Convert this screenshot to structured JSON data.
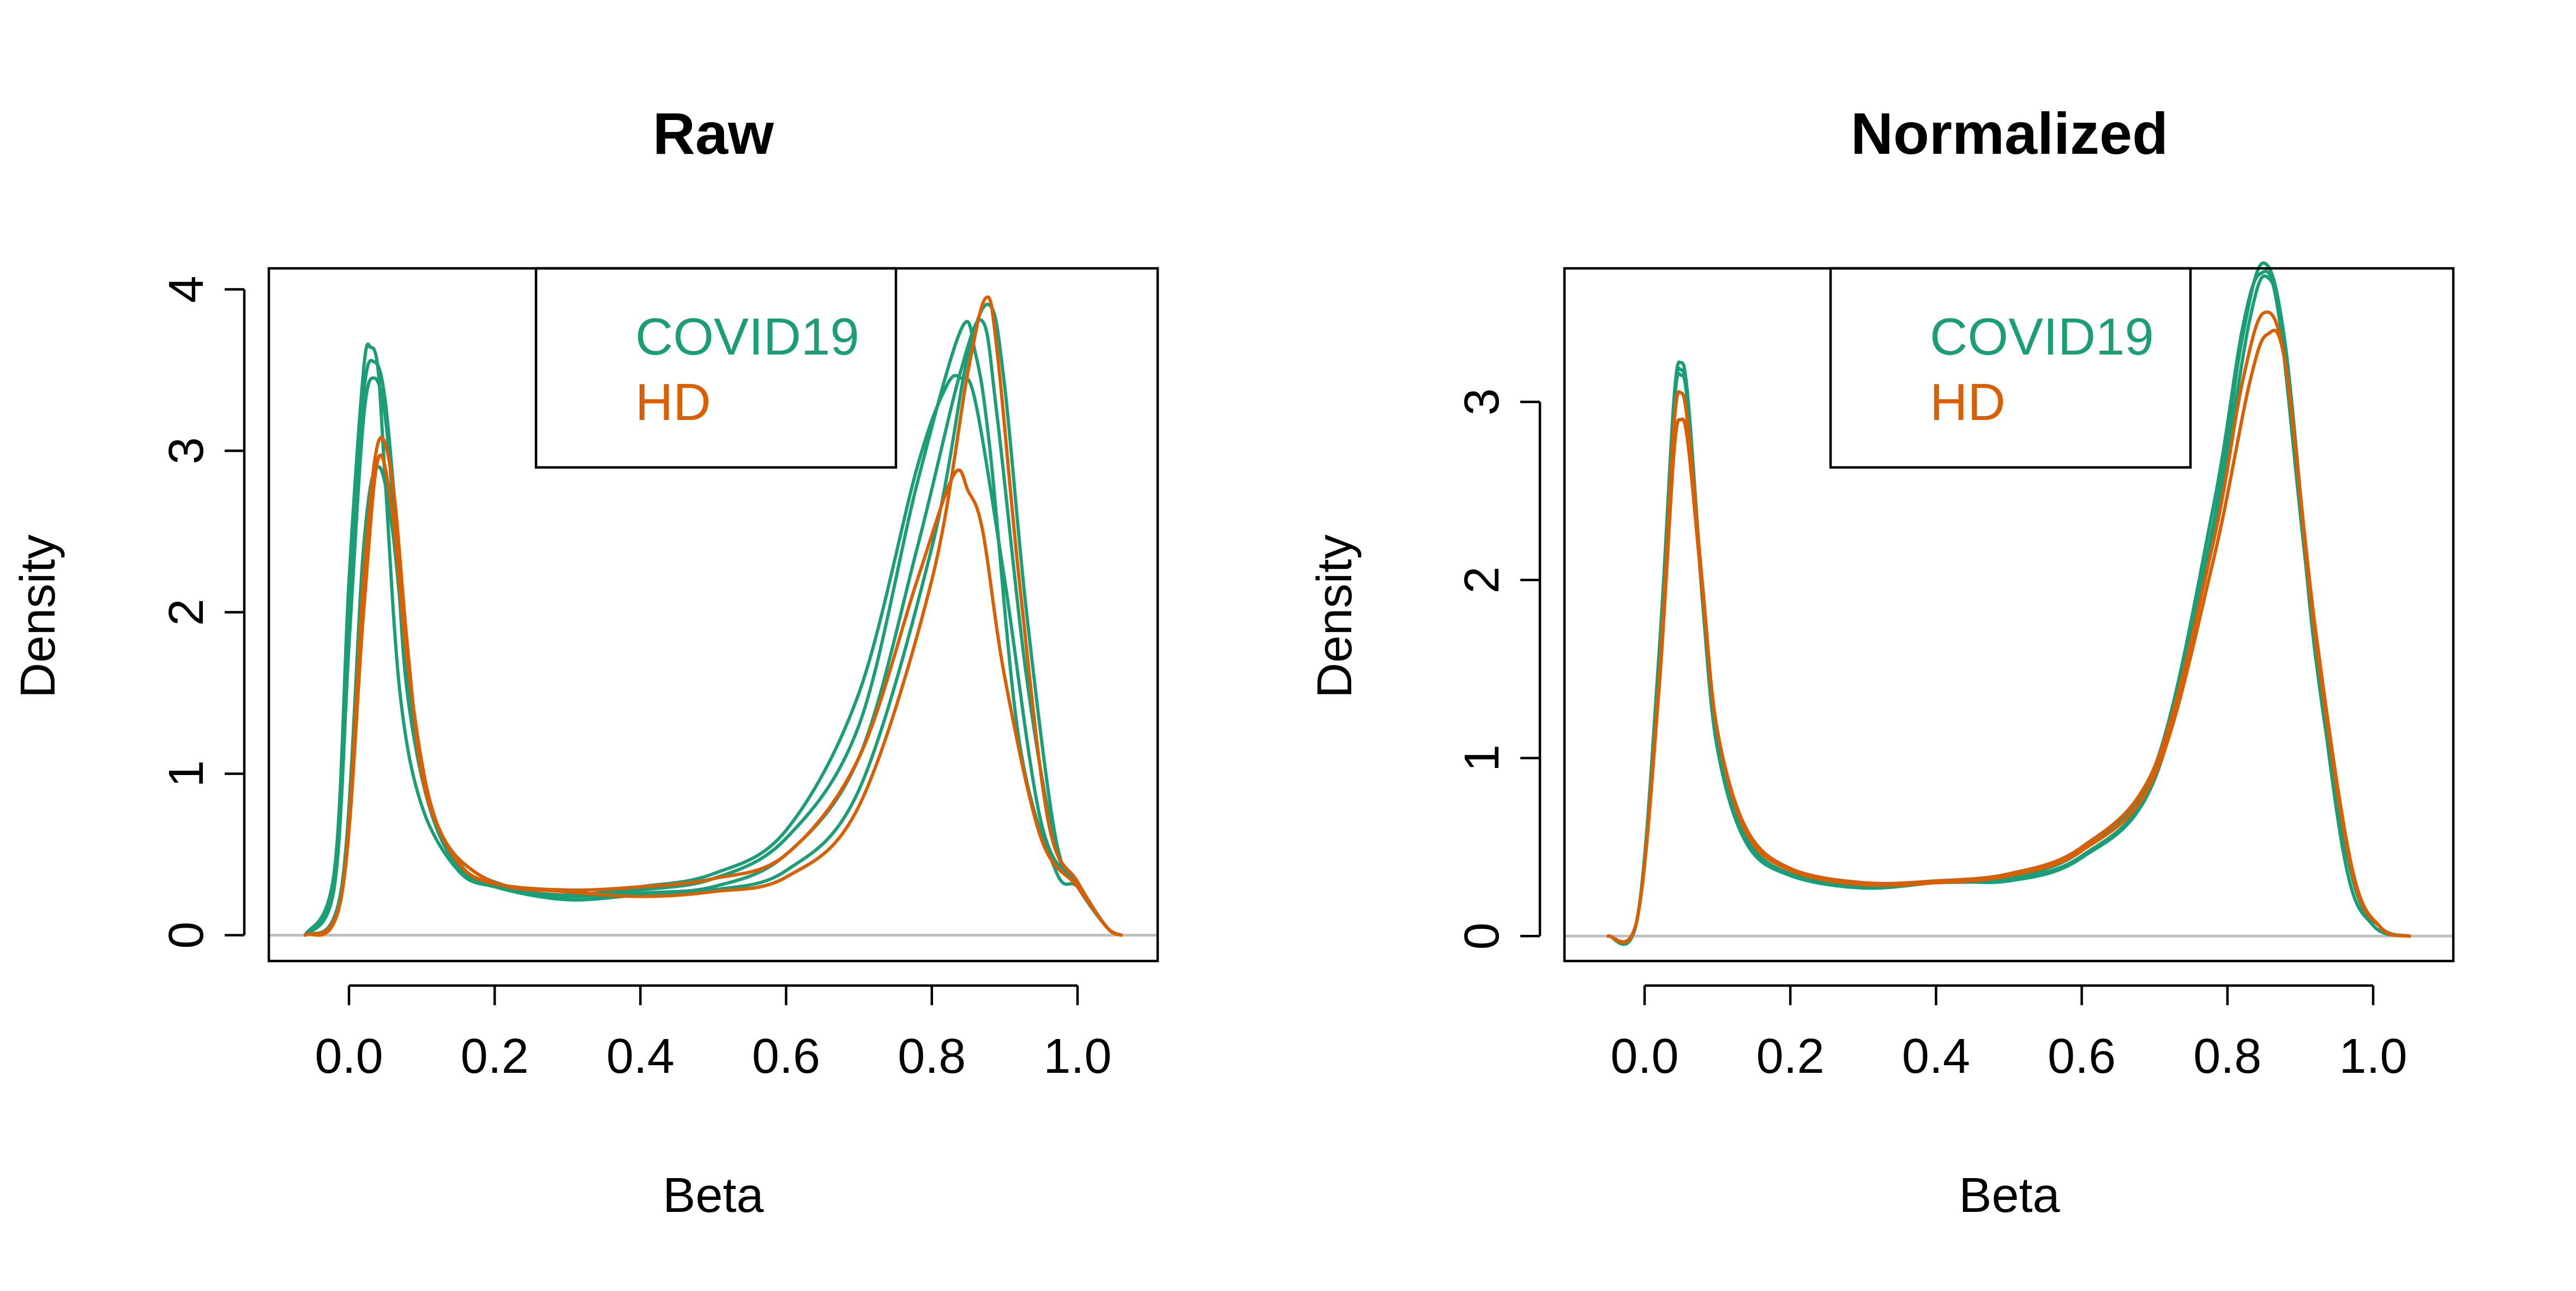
{
  "colors": {
    "COVID19": "#1b9e77",
    "HD": "#d95f02",
    "zero_line": "#bebebe"
  },
  "legend": {
    "items": [
      {
        "label": "COVID19",
        "color": "#1b9e77"
      },
      {
        "label": "HD",
        "color": "#d95f02"
      }
    ],
    "placement": "top-center"
  },
  "chart_data": [
    {
      "type": "line",
      "title": "Raw",
      "xlabel": "Beta",
      "ylabel": "Density",
      "xlim": [
        -0.11,
        1.11
      ],
      "ylim": [
        -0.16,
        4.13
      ],
      "x_ticks": [
        0.0,
        0.2,
        0.4,
        0.6,
        0.8,
        1.0
      ],
      "x_tick_labels": [
        "0.0",
        "0.2",
        "0.4",
        "0.6",
        "0.8",
        "1.0"
      ],
      "y_ticks": [
        0,
        1,
        2,
        3,
        4
      ],
      "y_tick_labels": [
        "0",
        "1",
        "2",
        "3",
        "4"
      ],
      "grid": false,
      "legend": "top-center",
      "series": [
        {
          "group": "COVID19",
          "x": [
            -0.06,
            -0.02,
            0.0,
            0.02,
            0.03,
            0.04,
            0.05,
            0.07,
            0.1,
            0.15,
            0.2,
            0.3,
            0.4,
            0.5,
            0.6,
            0.7,
            0.78,
            0.84,
            0.86,
            0.88,
            0.92,
            0.97,
            1.0,
            1.04,
            1.06
          ],
          "y": [
            0.0,
            0.4,
            2.2,
            3.5,
            3.64,
            3.5,
            2.8,
            1.5,
            0.8,
            0.4,
            0.3,
            0.24,
            0.28,
            0.35,
            0.6,
            1.3,
            2.8,
            3.75,
            3.6,
            3.0,
            1.2,
            0.4,
            0.3,
            0.05,
            0.0
          ]
        },
        {
          "group": "COVID19",
          "x": [
            -0.06,
            -0.02,
            0.0,
            0.02,
            0.035,
            0.05,
            0.065,
            0.08,
            0.11,
            0.15,
            0.2,
            0.3,
            0.4,
            0.5,
            0.6,
            0.7,
            0.78,
            0.84,
            0.87,
            0.89,
            0.93,
            0.97,
            1.0,
            1.04,
            1.06
          ],
          "y": [
            0.0,
            0.3,
            1.8,
            3.2,
            3.45,
            3.2,
            2.4,
            1.5,
            0.8,
            0.42,
            0.3,
            0.22,
            0.26,
            0.3,
            0.5,
            1.1,
            2.4,
            3.5,
            3.8,
            3.2,
            1.6,
            0.55,
            0.32,
            0.05,
            0.0
          ]
        },
        {
          "group": "COVID19",
          "x": [
            -0.06,
            -0.01,
            0.02,
            0.04,
            0.06,
            0.08,
            0.1,
            0.13,
            0.17,
            0.22,
            0.3,
            0.4,
            0.5,
            0.6,
            0.7,
            0.8,
            0.85,
            0.88,
            0.9,
            0.93,
            0.97,
            1.0,
            1.04,
            1.06
          ],
          "y": [
            0.0,
            0.3,
            2.4,
            2.9,
            2.5,
            1.6,
            1.0,
            0.6,
            0.4,
            0.3,
            0.22,
            0.25,
            0.28,
            0.4,
            0.9,
            2.4,
            3.6,
            3.9,
            3.4,
            2.0,
            0.6,
            0.33,
            0.05,
            0.0
          ]
        },
        {
          "group": "COVID19",
          "x": [
            -0.06,
            -0.02,
            0.0,
            0.02,
            0.035,
            0.05,
            0.07,
            0.09,
            0.12,
            0.16,
            0.2,
            0.3,
            0.4,
            0.5,
            0.6,
            0.7,
            0.78,
            0.82,
            0.84,
            0.86,
            0.9,
            0.95,
            1.0,
            1.04,
            1.06
          ],
          "y": [
            0.0,
            0.35,
            2.0,
            3.35,
            3.55,
            3.3,
            2.3,
            1.3,
            0.7,
            0.4,
            0.3,
            0.25,
            0.3,
            0.38,
            0.65,
            1.5,
            2.9,
            3.4,
            3.45,
            3.3,
            2.2,
            0.7,
            0.3,
            0.05,
            0.0
          ]
        },
        {
          "group": "HD",
          "x": [
            -0.06,
            -0.01,
            0.02,
            0.04,
            0.06,
            0.08,
            0.1,
            0.13,
            0.17,
            0.22,
            0.3,
            0.4,
            0.5,
            0.6,
            0.7,
            0.8,
            0.85,
            0.875,
            0.89,
            0.92,
            0.96,
            1.0,
            1.04,
            1.06
          ],
          "y": [
            0.0,
            0.25,
            2.2,
            3.05,
            2.8,
            1.8,
            1.0,
            0.6,
            0.4,
            0.3,
            0.27,
            0.24,
            0.27,
            0.36,
            0.8,
            2.2,
            3.5,
            3.95,
            3.6,
            2.2,
            0.7,
            0.33,
            0.05,
            0.0
          ]
        },
        {
          "group": "HD",
          "x": [
            -0.06,
            -0.01,
            0.02,
            0.04,
            0.06,
            0.08,
            0.11,
            0.15,
            0.2,
            0.3,
            0.4,
            0.5,
            0.6,
            0.7,
            0.78,
            0.83,
            0.85,
            0.87,
            0.9,
            0.95,
            1.0,
            1.04,
            1.06
          ],
          "y": [
            0.0,
            0.25,
            2.0,
            2.95,
            2.6,
            1.7,
            0.85,
            0.45,
            0.32,
            0.28,
            0.3,
            0.35,
            0.5,
            1.1,
            2.2,
            2.85,
            2.75,
            2.5,
            1.6,
            0.6,
            0.3,
            0.05,
            0.0
          ]
        }
      ]
    },
    {
      "type": "line",
      "title": "Normalized",
      "xlabel": "Beta",
      "ylabel": "Density",
      "xlim": [
        -0.11,
        1.11
      ],
      "ylim": [
        -0.14,
        3.75
      ],
      "x_ticks": [
        0.0,
        0.2,
        0.4,
        0.6,
        0.8,
        1.0
      ],
      "x_tick_labels": [
        "0.0",
        "0.2",
        "0.4",
        "0.6",
        "0.8",
        "1.0"
      ],
      "y_ticks": [
        0,
        1,
        2,
        3
      ],
      "y_tick_labels": [
        "0",
        "1",
        "2",
        "3"
      ],
      "grid": false,
      "legend": "top-center",
      "series": [
        {
          "group": "COVID19",
          "x": [
            -0.05,
            -0.01,
            0.02,
            0.04,
            0.05,
            0.06,
            0.08,
            0.1,
            0.14,
            0.2,
            0.3,
            0.4,
            0.5,
            0.6,
            0.7,
            0.78,
            0.82,
            0.85,
            0.88,
            0.92,
            0.97,
            1.01,
            1.05
          ],
          "y": [
            0.0,
            0.1,
            1.6,
            3.0,
            3.22,
            3.0,
            1.9,
            1.1,
            0.55,
            0.35,
            0.28,
            0.3,
            0.32,
            0.45,
            0.9,
            2.3,
            3.35,
            3.78,
            3.3,
            1.6,
            0.35,
            0.05,
            0.0
          ]
        },
        {
          "group": "COVID19",
          "x": [
            -0.05,
            -0.01,
            0.02,
            0.04,
            0.05,
            0.06,
            0.08,
            0.1,
            0.14,
            0.2,
            0.3,
            0.4,
            0.5,
            0.6,
            0.7,
            0.78,
            0.82,
            0.845,
            0.87,
            0.91,
            0.96,
            1.0,
            1.05
          ],
          "y": [
            0.0,
            0.1,
            1.5,
            2.95,
            3.15,
            2.95,
            1.85,
            1.05,
            0.52,
            0.34,
            0.27,
            0.3,
            0.33,
            0.48,
            0.95,
            2.4,
            3.4,
            3.72,
            3.5,
            2.0,
            0.45,
            0.06,
            0.0
          ]
        },
        {
          "group": "COVID19",
          "x": [
            -0.05,
            -0.01,
            0.02,
            0.04,
            0.05,
            0.06,
            0.08,
            0.1,
            0.14,
            0.2,
            0.3,
            0.4,
            0.5,
            0.6,
            0.7,
            0.78,
            0.83,
            0.855,
            0.88,
            0.92,
            0.97,
            1.01,
            1.05
          ],
          "y": [
            0.0,
            0.1,
            1.55,
            2.98,
            3.18,
            2.97,
            1.88,
            1.08,
            0.54,
            0.35,
            0.28,
            0.31,
            0.31,
            0.44,
            0.88,
            2.25,
            3.45,
            3.7,
            3.3,
            1.7,
            0.38,
            0.05,
            0.0
          ]
        },
        {
          "group": "HD",
          "x": [
            -0.05,
            -0.01,
            0.02,
            0.04,
            0.05,
            0.06,
            0.08,
            0.1,
            0.14,
            0.2,
            0.3,
            0.4,
            0.5,
            0.6,
            0.7,
            0.78,
            0.82,
            0.85,
            0.88,
            0.92,
            0.97,
            1.01,
            1.05
          ],
          "y": [
            0.0,
            0.1,
            1.4,
            2.7,
            2.9,
            2.75,
            1.9,
            1.15,
            0.6,
            0.38,
            0.3,
            0.31,
            0.35,
            0.5,
            0.95,
            2.2,
            3.1,
            3.5,
            3.2,
            1.7,
            0.38,
            0.05,
            0.0
          ]
        },
        {
          "group": "HD",
          "x": [
            -0.05,
            -0.01,
            0.02,
            0.04,
            0.05,
            0.06,
            0.08,
            0.1,
            0.14,
            0.2,
            0.3,
            0.4,
            0.5,
            0.6,
            0.7,
            0.78,
            0.83,
            0.855,
            0.88,
            0.92,
            0.97,
            1.01,
            1.05
          ],
          "y": [
            0.0,
            0.1,
            1.45,
            2.85,
            3.05,
            2.85,
            1.95,
            1.15,
            0.58,
            0.37,
            0.29,
            0.3,
            0.34,
            0.48,
            0.9,
            2.1,
            3.1,
            3.38,
            3.2,
            1.75,
            0.4,
            0.05,
            0.0
          ]
        }
      ]
    }
  ]
}
